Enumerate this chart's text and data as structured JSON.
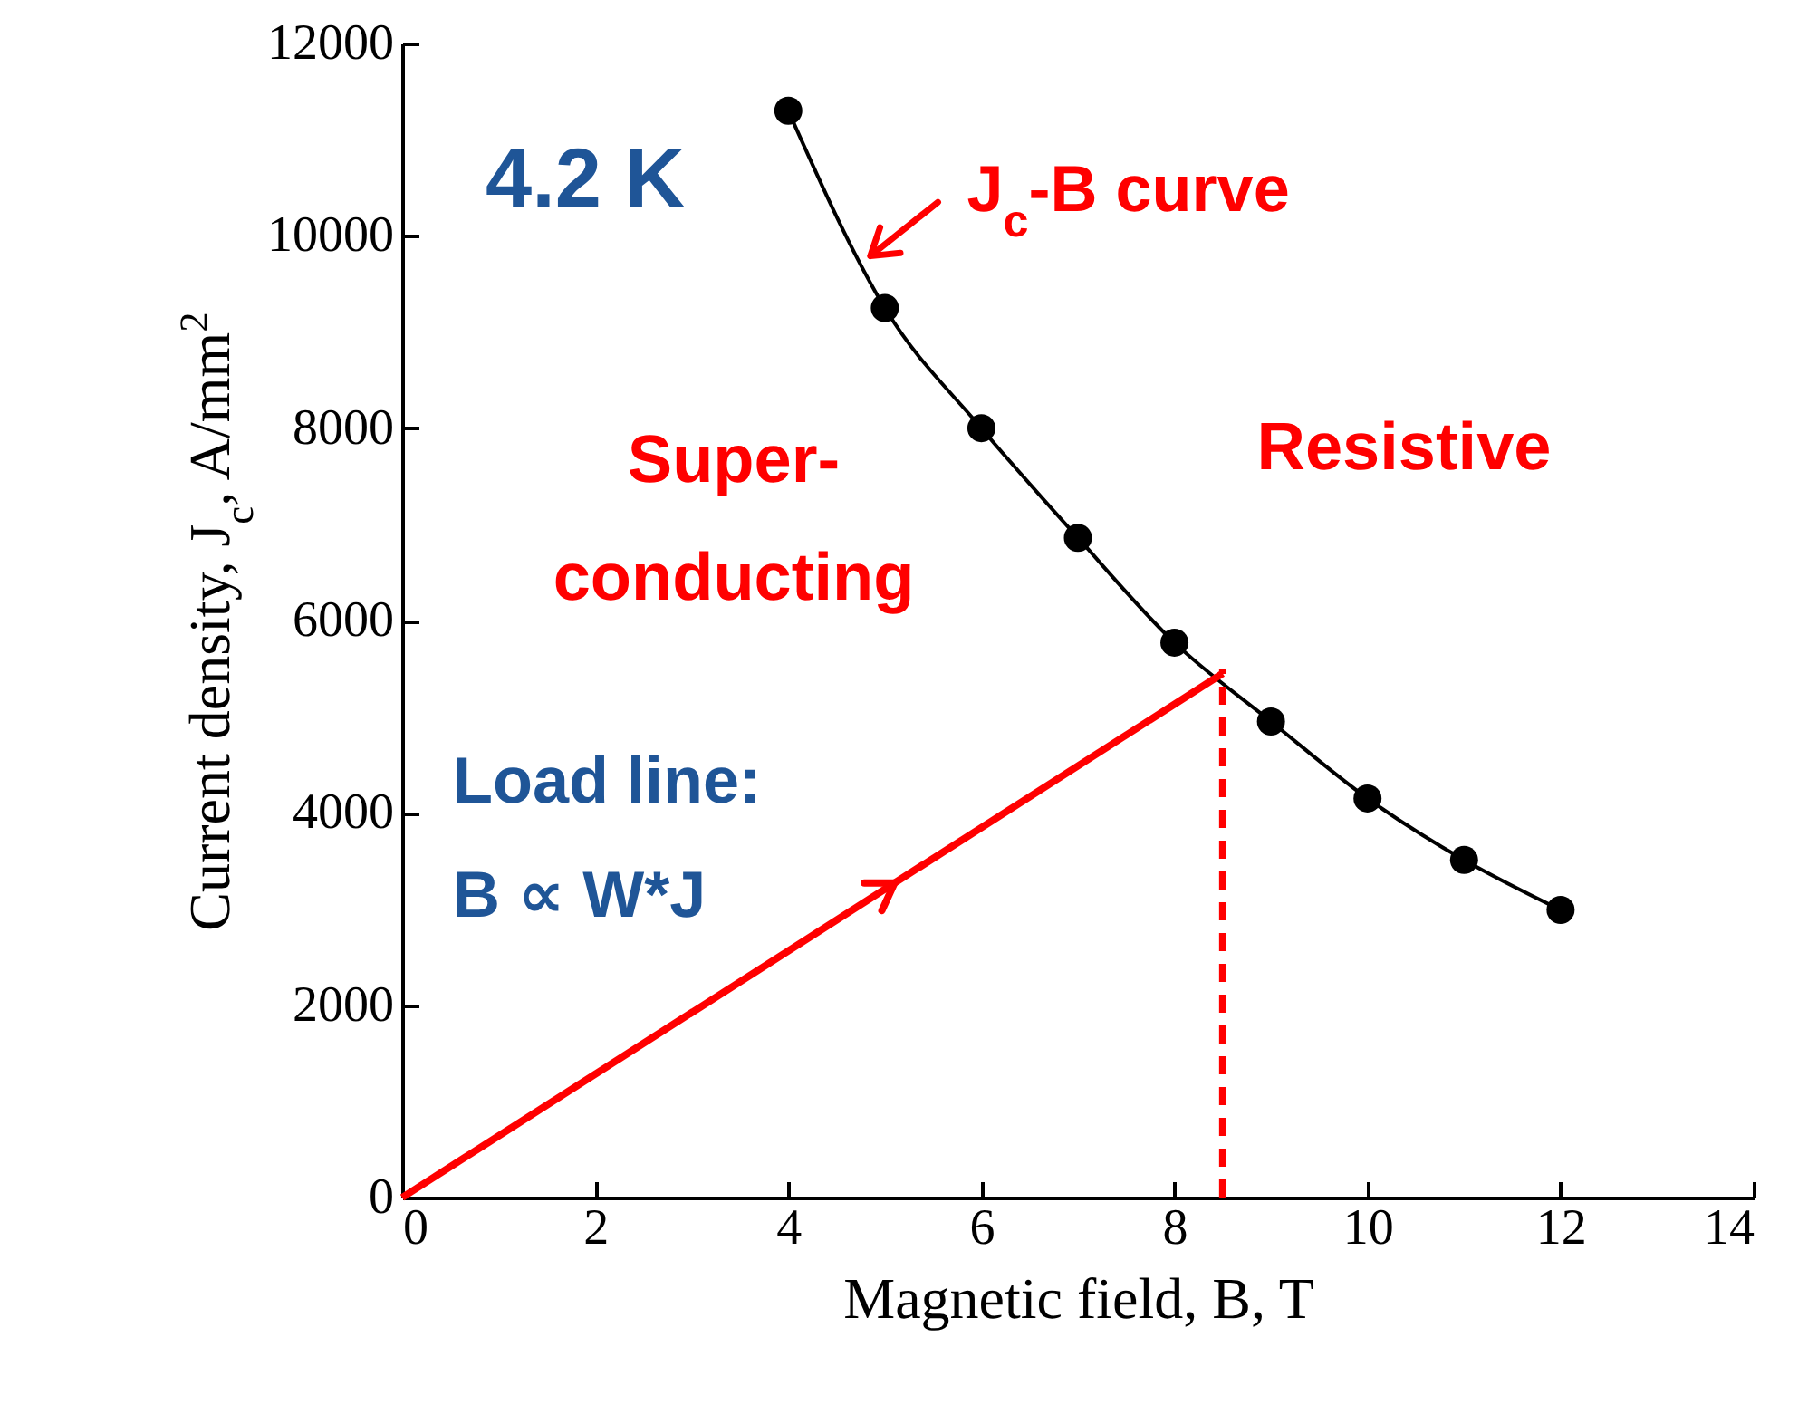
{
  "chart_data": {
    "type": "line",
    "xlabel": "Magnetic field, B, T",
    "ylabel": "Current density, J$_{c}$, A/mm$^{2}$",
    "xlim": [
      0,
      14
    ],
    "xticks": [
      0,
      2,
      4,
      6,
      8,
      10,
      12,
      14
    ],
    "ylim": [
      0,
      12000
    ],
    "yticks": [
      0,
      2000,
      4000,
      6000,
      8000,
      10000,
      12000
    ],
    "grid": false,
    "series": [
      {
        "color": "#000000",
        "marker": "circle",
        "x": [
          4,
          5,
          6,
          7,
          8,
          9,
          10,
          11,
          12
        ],
        "values": [
          11300,
          9250,
          8000,
          6860,
          5770,
          4950,
          4150,
          3510,
          2990
        ]
      },
      {
        "color": "#ff0000",
        "marker": "none",
        "x": [
          0,
          8.5
        ],
        "values": [
          0,
          5450
        ]
      },
      {
        "color": "#ff0000",
        "marker": "none",
        "line_style": "dashed",
        "x": [
          8.5,
          8.5
        ],
        "values": [
          0,
          5500
        ]
      }
    ],
    "annotations": [
      "4.2 K",
      "Super-\nconducting",
      "Resistive",
      "Load line:\nB ∝ W*J",
      {
        "text": "J$_{c}$-B curve",
        "x": 4.8,
        "y": 9750
      }
    ]
  }
}
